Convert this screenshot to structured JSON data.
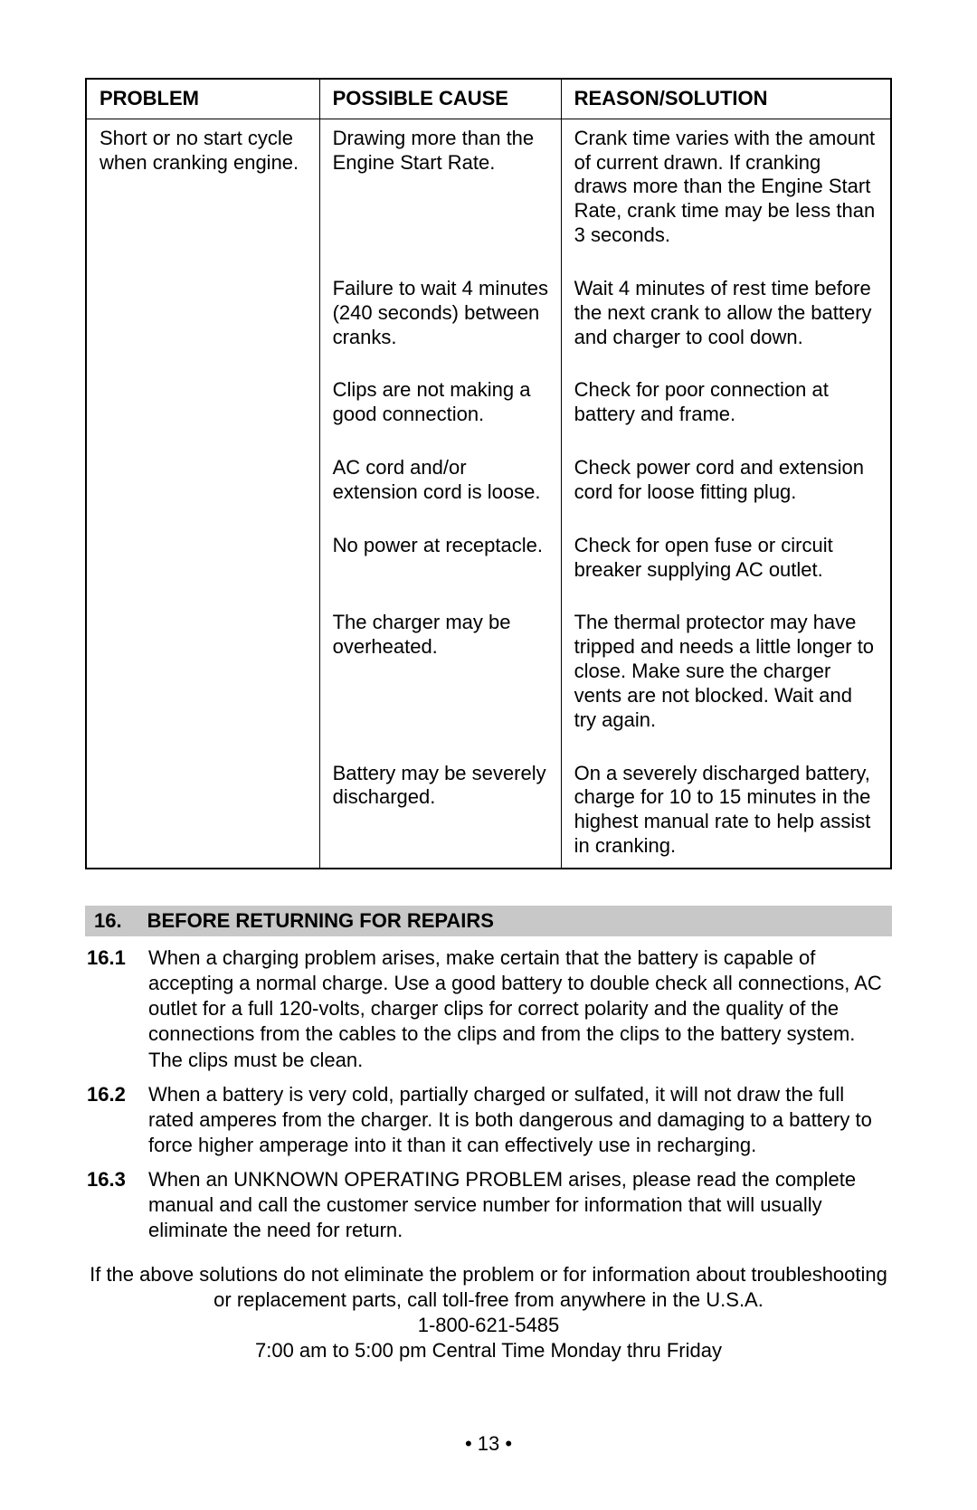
{
  "table": {
    "headers": {
      "problem": "PROBLEM",
      "cause": "POSSIBLE CAUSE",
      "reason": "REASON/SOLUTION"
    },
    "problem": "Short or no start cycle when cranking engine.",
    "rows": [
      {
        "cause": "Drawing more than the Engine Start Rate.",
        "reason": "Crank time varies with the amount of current drawn. If cranking draws more than the Engine Start Rate, crank time may be less than 3 seconds."
      },
      {
        "cause": "Failure to wait 4 minutes (240 seconds) between cranks.",
        "reason": "Wait 4 minutes of rest time before the next crank to allow the battery and charger to cool down."
      },
      {
        "cause": "Clips are not making a good connection.",
        "reason": "Check for poor connection at battery and frame."
      },
      {
        "cause": "AC cord and/or extension cord is loose.",
        "reason": "Check power cord and extension cord for loose fitting plug."
      },
      {
        "cause": "No power at receptacle.",
        "reason": "Check for open fuse or circuit breaker supplying AC outlet."
      },
      {
        "cause": "The charger may be overheated.",
        "reason": "The thermal protector may have tripped and needs a little longer to close. Make sure the charger vents are not blocked. Wait and try again."
      },
      {
        "cause": "Battery may be severely discharged.",
        "reason": "On a severely discharged battery, charge for 10 to 15 minutes in the highest manual rate to help assist in cranking."
      }
    ]
  },
  "section": {
    "number": "16.",
    "title": "BEFORE RETURNING FOR REPAIRS",
    "items": [
      {
        "num": "16.1",
        "text": "When a charging problem arises, make certain that the battery is capable of accepting a normal charge. Use a good battery to double check all connections, AC outlet for a full 120-volts, charger clips for correct polarity and the quality of the connections from the cables to the clips and from the clips to the battery system. The clips must be clean."
      },
      {
        "num": "16.2",
        "text": "When a battery is very cold, partially charged or sulfated, it will not draw the full rated amperes from the charger. It is both dangerous and damaging to a battery to force higher amperage into it than it can effectively use in recharging."
      },
      {
        "num": "16.3",
        "text": "When an UNKNOWN OPERATING PROBLEM arises, please read the complete manual and call the customer service number for information that will usually eliminate the need for return."
      }
    ]
  },
  "footer": {
    "line1": "If the above solutions do not eliminate the problem or for information about troubleshooting or replacement parts, call toll-free from anywhere in the U.S.A.",
    "line2": "1-800-621-5485",
    "line3": "7:00 am to 5:00 pm Central Time Monday thru Friday"
  },
  "page_number": "• 13 •"
}
